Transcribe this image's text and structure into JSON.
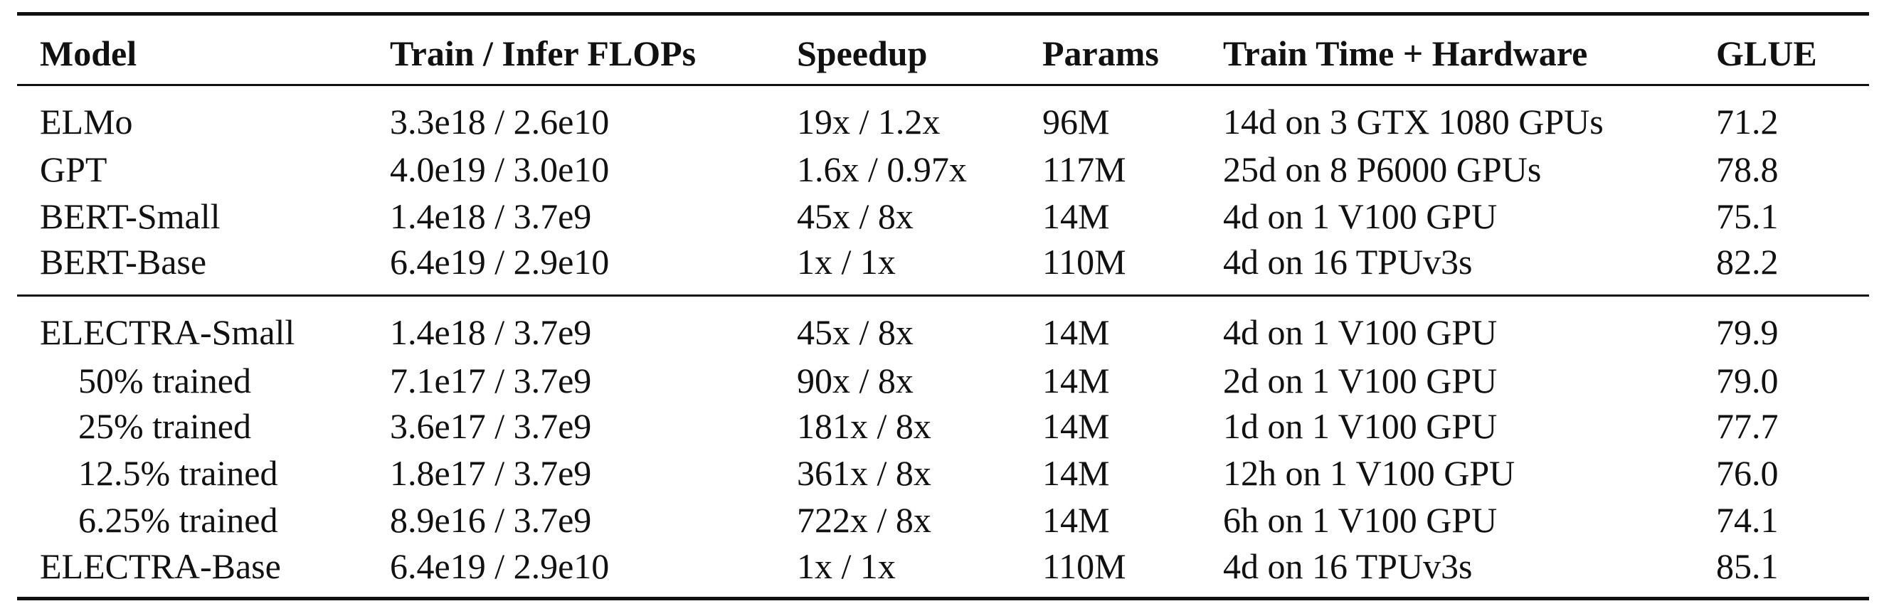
{
  "table": {
    "header": [
      "Model",
      "Train / Infer FLOPs",
      "Speedup",
      "Params",
      "Train Time + Hardware",
      "GLUE"
    ],
    "sections": [
      {
        "rows": [
          [
            "ELMo",
            "3.3e18 / 2.6e10",
            "19x / 1.2x",
            "96M",
            "14d on 3 GTX 1080 GPUs",
            "71.2"
          ],
          [
            "GPT",
            "4.0e19 / 3.0e10",
            "1.6x / 0.97x",
            "117M",
            "25d on 8 P6000 GPUs",
            "78.8"
          ],
          [
            "BERT-Small",
            "1.4e18 / 3.7e9",
            "45x / 8x",
            "14M",
            "4d on 1 V100 GPU",
            "75.1"
          ],
          [
            "BERT-Base",
            "6.4e19 / 2.9e10",
            "1x / 1x",
            "110M",
            "4d on 16 TPUv3s",
            "82.2"
          ]
        ]
      },
      {
        "rows": [
          [
            "ELECTRA-Small",
            "1.4e18 / 3.7e9",
            "45x / 8x",
            "14M",
            "4d on 1 V100 GPU",
            "79.9"
          ],
          [
            "50% trained",
            "7.1e17 / 3.7e9",
            "90x / 8x",
            "14M",
            "2d on 1 V100 GPU",
            "79.0"
          ],
          [
            "25% trained",
            "3.6e17 / 3.7e9",
            "181x / 8x",
            "14M",
            "1d on 1 V100 GPU",
            "77.7"
          ],
          [
            "12.5% trained",
            "1.8e17 / 3.7e9",
            "361x / 8x",
            "14M",
            "12h on 1 V100 GPU",
            "76.0"
          ],
          [
            "6.25% trained",
            "8.9e16 / 3.7e9",
            "722x / 8x",
            "14M",
            "6h on 1 V100 GPU",
            "74.1"
          ],
          [
            "ELECTRA-Base",
            "6.4e19 / 2.9e10",
            "1x / 1x",
            "110M",
            "4d on 16 TPUv3s",
            "85.1"
          ]
        ]
      }
    ]
  }
}
